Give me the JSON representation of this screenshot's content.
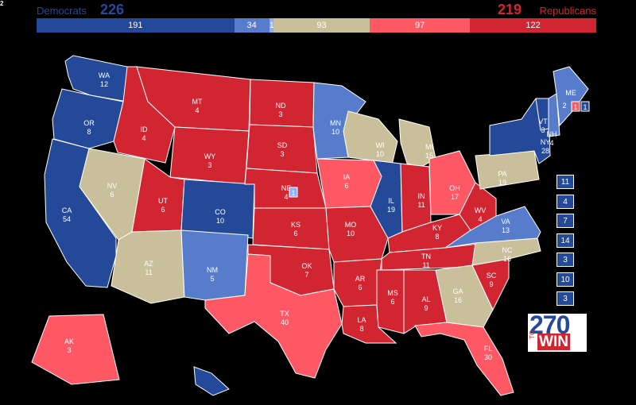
{
  "corner_mark": "2",
  "header": {
    "dem_label": "Democrats",
    "dem_total": "226",
    "rep_total": "219",
    "rep_label": "Republicans"
  },
  "bar": [
    {
      "name": "solid-dem",
      "value": "191",
      "color": "#244999",
      "weight": 191
    },
    {
      "name": "likely-dem",
      "value": "34",
      "color": "#577ccc",
      "weight": 34
    },
    {
      "name": "lean-dem",
      "value": "1",
      "color": "#8aafff",
      "weight": 4
    },
    {
      "name": "tossup",
      "value": "93",
      "color": "#c9c09b",
      "weight": 93
    },
    {
      "name": "likely-rep",
      "value": "97",
      "color": "#ff5865",
      "weight": 97
    },
    {
      "name": "solid-rep",
      "value": "122",
      "color": "#d22532",
      "weight": 122
    }
  ],
  "colors": {
    "solid_dem": "#244999",
    "likely_dem": "#577ccc",
    "tossup": "#c9c09b",
    "likely_rep": "#ff5865",
    "solid_rep": "#d22532"
  },
  "states": [
    {
      "abbr": "WA",
      "votes": "12",
      "rating": "solid_dem"
    },
    {
      "abbr": "OR",
      "votes": "8",
      "rating": "solid_dem"
    },
    {
      "abbr": "CA",
      "votes": "54",
      "rating": "solid_dem"
    },
    {
      "abbr": "NV",
      "votes": "6",
      "rating": "tossup"
    },
    {
      "abbr": "ID",
      "votes": "4",
      "rating": "solid_rep"
    },
    {
      "abbr": "MT",
      "votes": "4",
      "rating": "solid_rep"
    },
    {
      "abbr": "WY",
      "votes": "3",
      "rating": "solid_rep"
    },
    {
      "abbr": "UT",
      "votes": "6",
      "rating": "solid_rep"
    },
    {
      "abbr": "CO",
      "votes": "10",
      "rating": "solid_dem"
    },
    {
      "abbr": "AZ",
      "votes": "11",
      "rating": "tossup"
    },
    {
      "abbr": "NM",
      "votes": "5",
      "rating": "likely_dem"
    },
    {
      "abbr": "ND",
      "votes": "3",
      "rating": "solid_rep"
    },
    {
      "abbr": "SD",
      "votes": "3",
      "rating": "solid_rep"
    },
    {
      "abbr": "NE",
      "votes": "4",
      "rating": "solid_rep"
    },
    {
      "abbr": "KS",
      "votes": "6",
      "rating": "solid_rep"
    },
    {
      "abbr": "OK",
      "votes": "7",
      "rating": "solid_rep"
    },
    {
      "abbr": "TX",
      "votes": "40",
      "rating": "likely_rep"
    },
    {
      "abbr": "MN",
      "votes": "10",
      "rating": "likely_dem"
    },
    {
      "abbr": "IA",
      "votes": "6",
      "rating": "likely_rep"
    },
    {
      "abbr": "MO",
      "votes": "10",
      "rating": "solid_rep"
    },
    {
      "abbr": "AR",
      "votes": "6",
      "rating": "solid_rep"
    },
    {
      "abbr": "LA",
      "votes": "8",
      "rating": "solid_rep"
    },
    {
      "abbr": "WI",
      "votes": "10",
      "rating": "tossup"
    },
    {
      "abbr": "IL",
      "votes": "19",
      "rating": "solid_dem"
    },
    {
      "abbr": "MI",
      "votes": "15",
      "rating": "tossup"
    },
    {
      "abbr": "IN",
      "votes": "11",
      "rating": "solid_rep"
    },
    {
      "abbr": "OH",
      "votes": "17",
      "rating": "likely_rep"
    },
    {
      "abbr": "KY",
      "votes": "8",
      "rating": "solid_rep"
    },
    {
      "abbr": "TN",
      "votes": "11",
      "rating": "solid_rep"
    },
    {
      "abbr": "MS",
      "votes": "6",
      "rating": "solid_rep"
    },
    {
      "abbr": "AL",
      "votes": "9",
      "rating": "solid_rep"
    },
    {
      "abbr": "GA",
      "votes": "16",
      "rating": "tossup"
    },
    {
      "abbr": "FL",
      "votes": "30",
      "rating": "likely_rep"
    },
    {
      "abbr": "SC",
      "votes": "9",
      "rating": "solid_rep"
    },
    {
      "abbr": "NC",
      "votes": "16",
      "rating": "tossup"
    },
    {
      "abbr": "VA",
      "votes": "13",
      "rating": "likely_dem"
    },
    {
      "abbr": "WV",
      "votes": "4",
      "rating": "solid_rep"
    },
    {
      "abbr": "PA",
      "votes": "19",
      "rating": "tossup"
    },
    {
      "abbr": "NY",
      "votes": "28",
      "rating": "solid_dem"
    },
    {
      "abbr": "VT",
      "votes": "3",
      "rating": "solid_dem"
    },
    {
      "abbr": "NH",
      "votes": "4",
      "rating": "likely_dem"
    },
    {
      "abbr": "ME",
      "votes": "2",
      "rating": "likely_dem"
    },
    {
      "abbr": "AK",
      "votes": "3",
      "rating": "likely_rep"
    },
    {
      "abbr": "HI",
      "votes": "",
      "rating": "solid_dem"
    }
  ],
  "districts": {
    "ne_district": "1",
    "me_district_rep": "1",
    "me_district_dem": "1"
  },
  "small_states": [
    {
      "votes": "11"
    },
    {
      "votes": "4"
    },
    {
      "votes": "7"
    },
    {
      "votes": "14"
    },
    {
      "votes": "3"
    },
    {
      "votes": "10"
    },
    {
      "votes": "3"
    }
  ],
  "logo": {
    "top": "270",
    "to": "TO",
    "win": "WIN"
  }
}
